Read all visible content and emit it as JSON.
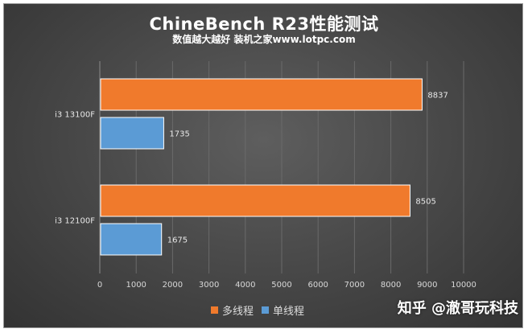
{
  "title": "ChineBench R23性能测试",
  "subtitle": "数值越大越好 装机之家www.lotpc.com",
  "watermark": "知乎 @澈哥玩科技",
  "chart_data": {
    "type": "bar",
    "orientation": "horizontal",
    "categories": [
      "i3 13100F",
      "i3 12100F"
    ],
    "series": [
      {
        "name": "多线程",
        "color": "#f07a2c",
        "values": [
          8837,
          8505
        ]
      },
      {
        "name": "单线程",
        "color": "#5b9bd5",
        "values": [
          1735,
          1675
        ]
      }
    ],
    "xlim": [
      0,
      10000
    ],
    "xticks": [
      0,
      1000,
      2000,
      3000,
      4000,
      5000,
      6000,
      7000,
      8000,
      9000,
      10000
    ],
    "gridlines": true,
    "legend": "bottom"
  }
}
